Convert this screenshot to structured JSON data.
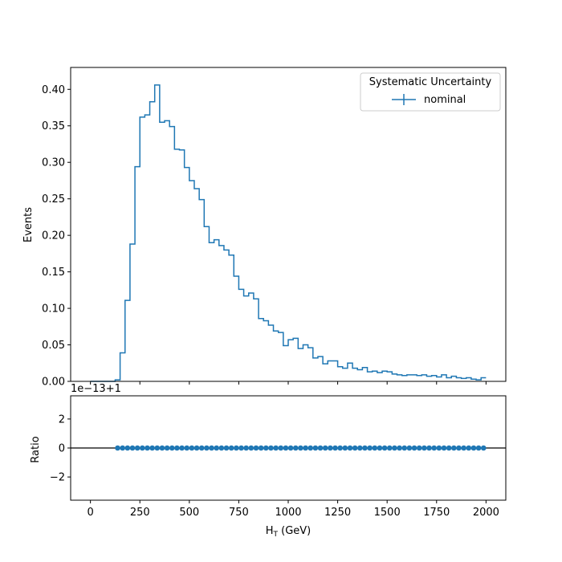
{
  "chart_data": [
    {
      "type": "histogram",
      "panel": "main",
      "ylabel": "Events",
      "xlim": [
        -100,
        2100
      ],
      "ylim": [
        0,
        0.43
      ],
      "xticks": [
        0,
        250,
        500,
        750,
        1000,
        1250,
        1500,
        1750,
        2000
      ],
      "yticks": [
        0.0,
        0.05,
        0.1,
        0.15,
        0.2,
        0.25,
        0.3,
        0.35,
        0.4
      ],
      "ytick_labels": [
        "0.00",
        "0.05",
        "0.10",
        "0.15",
        "0.20",
        "0.25",
        "0.30",
        "0.35",
        "0.40"
      ],
      "bin_width": 25,
      "x_start": 0,
      "color": "#1f77b4",
      "legend": {
        "title": "Systematic Uncertainty",
        "entries": [
          {
            "label": "nominal",
            "color": "#1f77b4"
          }
        ],
        "placement": "upper right"
      },
      "series": [
        {
          "name": "nominal",
          "values": [
            0,
            0,
            0,
            0,
            0,
            0.002,
            0.039,
            0.111,
            0.188,
            0.294,
            0.362,
            0.365,
            0.383,
            0.406,
            0.355,
            0.357,
            0.349,
            0.318,
            0.317,
            0.293,
            0.275,
            0.264,
            0.249,
            0.212,
            0.19,
            0.194,
            0.186,
            0.18,
            0.173,
            0.144,
            0.126,
            0.117,
            0.121,
            0.113,
            0.086,
            0.083,
            0.077,
            0.069,
            0.067,
            0.049,
            0.057,
            0.059,
            0.045,
            0.05,
            0.046,
            0.032,
            0.034,
            0.024,
            0.028,
            0.028,
            0.02,
            0.018,
            0.025,
            0.018,
            0.016,
            0.019,
            0.013,
            0.014,
            0.012,
            0.014,
            0.013,
            0.01,
            0.009,
            0.008,
            0.009,
            0.009,
            0.008,
            0.009,
            0.007,
            0.008,
            0.006,
            0.009,
            0.005,
            0.007,
            0.005,
            0.004,
            0.005,
            0.003,
            0.002,
            0.005
          ]
        }
      ]
    },
    {
      "type": "scatter",
      "panel": "ratio",
      "xlabel_main": "H",
      "xlabel_sub": "T",
      "xlabel_tail": " (GeV)",
      "ylabel": "Ratio",
      "offset_label": "1e−13+1",
      "xlim": [
        -100,
        2100
      ],
      "ylim": [
        -3.6,
        3.6
      ],
      "xticks": [
        0,
        250,
        500,
        750,
        1000,
        1250,
        1500,
        1750,
        2000
      ],
      "xtick_labels": [
        "0",
        "250",
        "500",
        "750",
        "1000",
        "1250",
        "1500",
        "1750",
        "2000"
      ],
      "yticks": [
        -2,
        0,
        2
      ],
      "ytick_labels": [
        "−2",
        "0",
        "2"
      ],
      "reference_line": 0,
      "x": [
        137.5,
        162.5,
        187.5,
        212.5,
        237.5,
        262.5,
        287.5,
        312.5,
        337.5,
        362.5,
        387.5,
        412.5,
        437.5,
        462.5,
        487.5,
        512.5,
        537.5,
        562.5,
        587.5,
        612.5,
        637.5,
        662.5,
        687.5,
        712.5,
        737.5,
        762.5,
        787.5,
        812.5,
        837.5,
        862.5,
        887.5,
        912.5,
        937.5,
        962.5,
        987.5,
        1012.5,
        1037.5,
        1062.5,
        1087.5,
        1112.5,
        1137.5,
        1162.5,
        1187.5,
        1212.5,
        1237.5,
        1262.5,
        1287.5,
        1312.5,
        1337.5,
        1362.5,
        1387.5,
        1412.5,
        1437.5,
        1462.5,
        1487.5,
        1512.5,
        1537.5,
        1562.5,
        1587.5,
        1612.5,
        1637.5,
        1662.5,
        1687.5,
        1712.5,
        1737.5,
        1762.5,
        1787.5,
        1812.5,
        1837.5,
        1862.5,
        1887.5,
        1912.5,
        1937.5,
        1962.5,
        1987.5
      ],
      "y_value": 0,
      "color": "#1f77b4"
    }
  ]
}
